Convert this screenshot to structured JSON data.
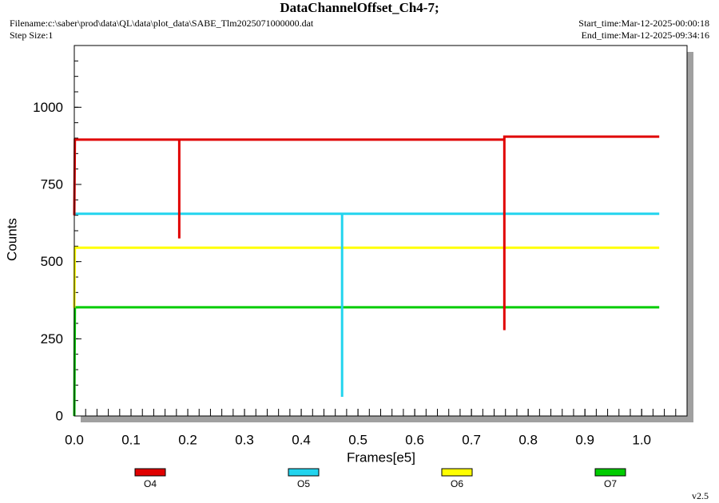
{
  "chart_data": {
    "type": "line",
    "title": "DataChannelOffset_Ch4-7;",
    "filename": "Filename:c:\\saber\\prod\\data\\QL\\data\\plot_data\\SABE_Tlm2025071000000.dat",
    "step_size": "Step Size:1",
    "start_time": "Start_time:Mar-12-2025-00:00:18",
    "end_time": "End_time:Mar-12-2025-09:34:16",
    "version": "v2.5",
    "x_label": "Frames[e5]",
    "y_label": "Counts",
    "xlim": [
      0,
      1.08
    ],
    "ylim": [
      0,
      1200
    ],
    "xticks": [
      {
        "value": 0,
        "label": "0.0"
      },
      0.1,
      0.2,
      0.3,
      0.4,
      0.5,
      0.6,
      0.7,
      0.8,
      0.9,
      {
        "value": 1,
        "label": "1.0"
      }
    ],
    "yticks": [
      0,
      250,
      500,
      750,
      1000
    ],
    "series": [
      {
        "name": "O4",
        "color": "#e00000",
        "x": [
          0,
          0.001,
          0.185,
          0.185,
          0.185,
          0.758,
          0.758,
          0.758,
          1.031
        ],
        "values": [
          650,
          895,
          895,
          575,
          895,
          895,
          278,
          905,
          905
        ]
      },
      {
        "name": "O5",
        "color": "#22d4ee",
        "x": [
          0,
          0.472,
          0.472,
          0.472,
          1.031
        ],
        "values": [
          655,
          655,
          62,
          655,
          655
        ]
      },
      {
        "name": "O6",
        "color": "#ffff00",
        "x": [
          0,
          0.001,
          1.031
        ],
        "values": [
          350,
          545,
          545
        ]
      },
      {
        "name": "O7",
        "color": "#00cc00",
        "x": [
          0,
          0.001,
          1.031
        ],
        "values": [
          0,
          352,
          352
        ]
      }
    ]
  }
}
